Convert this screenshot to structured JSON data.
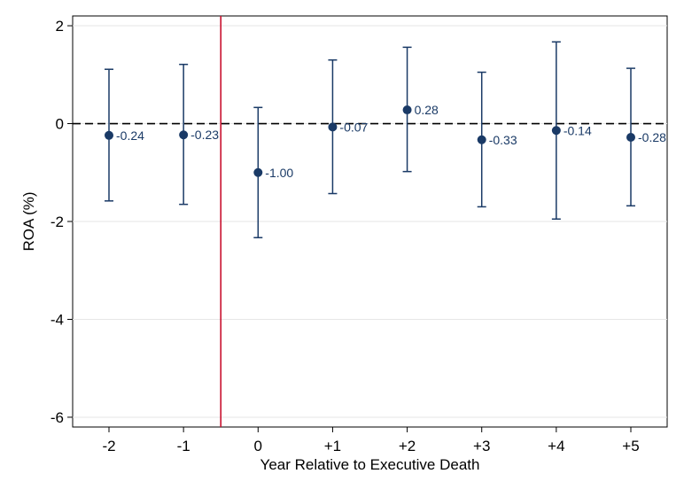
{
  "chart_data": {
    "type": "scatter",
    "title": "",
    "xlabel": "Year Relative to Executive Death",
    "ylabel": "ROA (%)",
    "categories": [
      "-2",
      "-1",
      "0",
      "+1",
      "+2",
      "+3",
      "+4",
      "+5"
    ],
    "values": [
      -0.24,
      -0.23,
      -1.0,
      -0.07,
      0.28,
      -0.33,
      -0.14,
      -0.28
    ],
    "value_labels": [
      "-0.24",
      "-0.23",
      "-1.00",
      "-0.07",
      "0.28",
      "-0.33",
      "-0.14",
      "-0.28"
    ],
    "ci_lower": [
      -1.58,
      -1.65,
      -2.33,
      -1.43,
      -0.98,
      -1.7,
      -1.95,
      -1.68
    ],
    "ci_upper": [
      1.11,
      1.21,
      0.33,
      1.3,
      1.56,
      1.05,
      1.67,
      1.13
    ],
    "ylim": [
      -6.2,
      2.2
    ],
    "yticks": [
      2,
      0,
      -2,
      -4,
      -6
    ],
    "ytick_labels": [
      "2",
      "0",
      "-2",
      "-4",
      "-6"
    ],
    "reference_lines": {
      "horizontal_y": 0,
      "vertical_between": [
        "-1",
        "0"
      ]
    },
    "grid": true,
    "colors": {
      "points": "#1a3a66",
      "error_bars": "#1a3a66",
      "vertical_line": "#c8102e",
      "zero_line": "#000000",
      "grid": "#e6e6e6"
    }
  }
}
